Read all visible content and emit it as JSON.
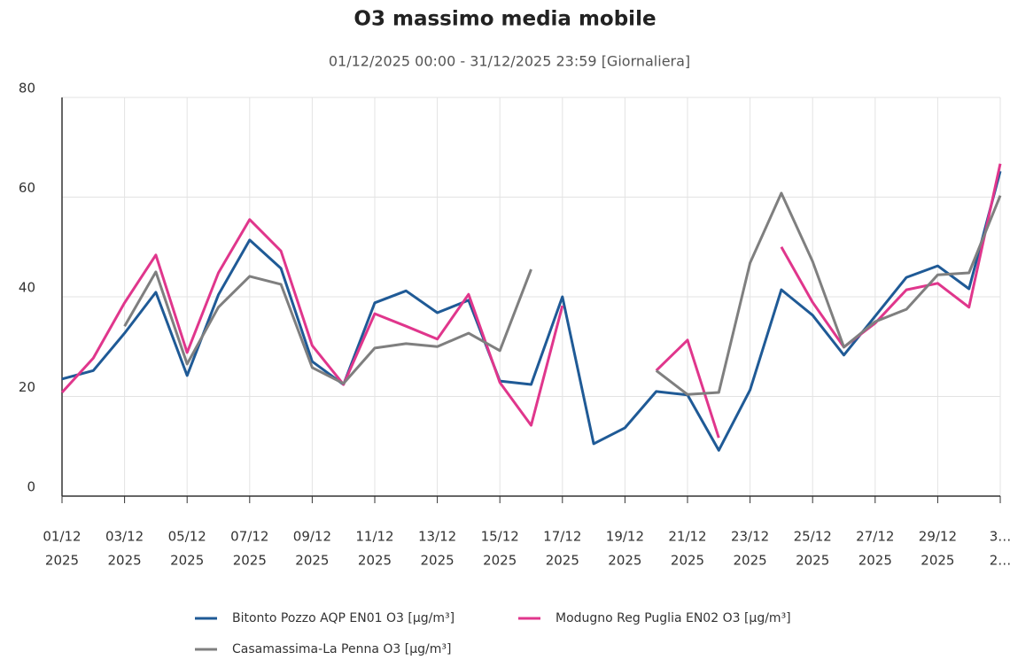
{
  "chart_data": {
    "type": "line",
    "title": "O3 massimo media mobile",
    "subtitle": "01/12/2025 00:00 - 31/12/2025 23:59 [Giornaliera]",
    "categories": [
      [
        "01/12",
        "2025"
      ],
      null,
      [
        "03/12",
        "2025"
      ],
      null,
      [
        "05/12",
        "2025"
      ],
      null,
      [
        "07/12",
        "2025"
      ],
      null,
      [
        "09/12",
        "2025"
      ],
      null,
      [
        "11/12",
        "2025"
      ],
      null,
      [
        "13/12",
        "2025"
      ],
      null,
      [
        "15/12",
        "2025"
      ],
      null,
      [
        "17/12",
        "2025"
      ],
      null,
      [
        "19/12",
        "2025"
      ],
      null,
      [
        "21/12",
        "2025"
      ],
      null,
      [
        "23/12",
        "2025"
      ],
      null,
      [
        "25/12",
        "2025"
      ],
      null,
      [
        "27/12",
        "2025"
      ],
      null,
      [
        "29/12",
        "2025"
      ],
      null,
      [
        "3…",
        "2…"
      ]
    ],
    "series": [
      {
        "name": "Bitonto Pozzo AQP EN01 O3 [µg/m³]",
        "color": "#1f5a96",
        "values": [
          23.5,
          25.2,
          32.7,
          40.9,
          24.2,
          40.4,
          51.4,
          45.7,
          27,
          22.4,
          38.8,
          41.2,
          36.8,
          39.3,
          23.1,
          22.4,
          40,
          10.5,
          13.7,
          21,
          20.3,
          9.2,
          21.3,
          41.4,
          36.3,
          28.3,
          36.1,
          43.9,
          46.2,
          41.6,
          65.2
        ]
      },
      {
        "name": "Modugno Reg Puglia EN02 O3 [µg/m³]",
        "color": "#e0368c",
        "values": [
          20.8,
          27.7,
          38.8,
          48.4,
          28.8,
          44.8,
          55.5,
          49.2,
          30.2,
          22.4,
          36.6,
          34.1,
          31.5,
          40.5,
          22.8,
          14.2,
          38.2,
          null,
          null,
          25.2,
          31.3,
          11.7,
          null,
          50,
          38.9,
          29.9,
          34.7,
          41.4,
          42.7,
          37.9,
          66.7
        ]
      },
      {
        "name": "Casamassima-La Penna O3 [µg/m³]",
        "color": "#7f7f7f",
        "values": [
          null,
          null,
          34.1,
          45,
          26.5,
          37.9,
          44.1,
          42.5,
          25.8,
          22.6,
          29.7,
          30.6,
          30,
          32.7,
          29.2,
          45.5,
          null,
          null,
          null,
          25.2,
          20.4,
          20.8,
          46.8,
          60.8,
          47.1,
          29.9,
          35,
          37.5,
          44.4,
          44.8,
          60.3
        ]
      }
    ],
    "ylim": [
      0,
      80
    ],
    "yticks": [
      0,
      20,
      40,
      60,
      80
    ],
    "grid": true,
    "legend": "bottom"
  }
}
